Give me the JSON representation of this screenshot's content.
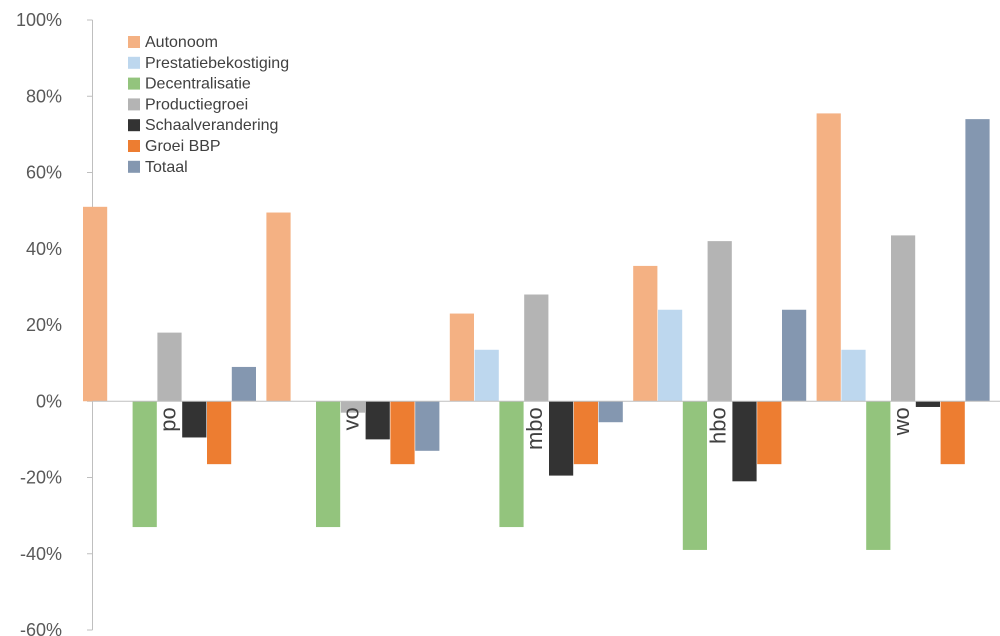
{
  "chart_data": {
    "type": "bar",
    "categories": [
      "po",
      "vo",
      "mbo",
      "hbo",
      "wo"
    ],
    "ylim": [
      -60,
      100
    ],
    "yticks": [
      100,
      80,
      60,
      40,
      20,
      0,
      -20,
      -40,
      -60
    ],
    "ytick_labels": [
      "100%",
      "80%",
      "60%",
      "40%",
      "20%",
      "0%",
      "-20%",
      "-40%",
      "-60%"
    ],
    "grid": false,
    "legend_position": "top-left",
    "series": [
      {
        "name": "Autonoom",
        "color": "#F4B183",
        "values": [
          51,
          49.5,
          23,
          35.5,
          75.5
        ]
      },
      {
        "name": "Prestatiebekostiging",
        "color": "#BDD7EE",
        "values": [
          0,
          0,
          13.5,
          24,
          13.5
        ]
      },
      {
        "name": "Decentralisatie",
        "color": "#93C47D",
        "values": [
          -33,
          -33,
          -33,
          -39,
          -39
        ]
      },
      {
        "name": "Productiegroei",
        "color": "#B4B4B4",
        "values": [
          18,
          -3,
          28,
          42,
          43.5
        ]
      },
      {
        "name": "Schaalverandering",
        "color": "#333333",
        "values": [
          -9.5,
          -10,
          -19.5,
          -21,
          -1.5
        ]
      },
      {
        "name": "Groei BBP",
        "color": "#ED7D31",
        "values": [
          -16.5,
          -16.5,
          -16.5,
          -16.5,
          -16.5
        ]
      },
      {
        "name": "Totaal",
        "color": "#8497B0",
        "values": [
          9,
          -13,
          -5.5,
          24,
          74
        ]
      }
    ]
  }
}
